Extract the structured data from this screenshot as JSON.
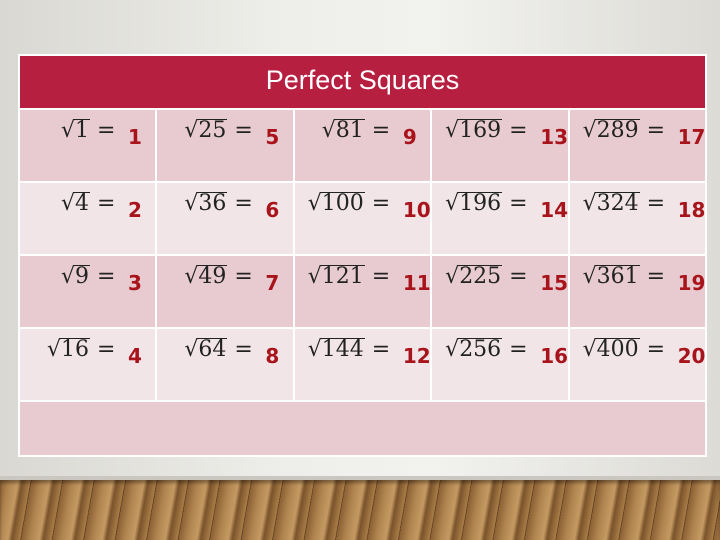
{
  "title": "Perfect Squares",
  "rows": [
    [
      {
        "n": "1",
        "a": "1"
      },
      {
        "n": "25",
        "a": "5"
      },
      {
        "n": "81",
        "a": "9"
      },
      {
        "n": "169",
        "a": "13"
      },
      {
        "n": "289",
        "a": "17"
      }
    ],
    [
      {
        "n": "4",
        "a": "2"
      },
      {
        "n": "36",
        "a": "6"
      },
      {
        "n": "100",
        "a": "10"
      },
      {
        "n": "196",
        "a": "14"
      },
      {
        "n": "324",
        "a": "18"
      }
    ],
    [
      {
        "n": "9",
        "a": "3"
      },
      {
        "n": "49",
        "a": "7"
      },
      {
        "n": "121",
        "a": "11"
      },
      {
        "n": "225",
        "a": "15"
      },
      {
        "n": "361",
        "a": "19"
      }
    ],
    [
      {
        "n": "16",
        "a": "4"
      },
      {
        "n": "64",
        "a": "8"
      },
      {
        "n": "144",
        "a": "12"
      },
      {
        "n": "256",
        "a": "16"
      },
      {
        "n": "400",
        "a": "20"
      }
    ]
  ],
  "colors": {
    "header": "#b71f41",
    "answer": "#a8141c",
    "row_dark": "#e8cbd0",
    "row_light": "#f1e5e7"
  }
}
